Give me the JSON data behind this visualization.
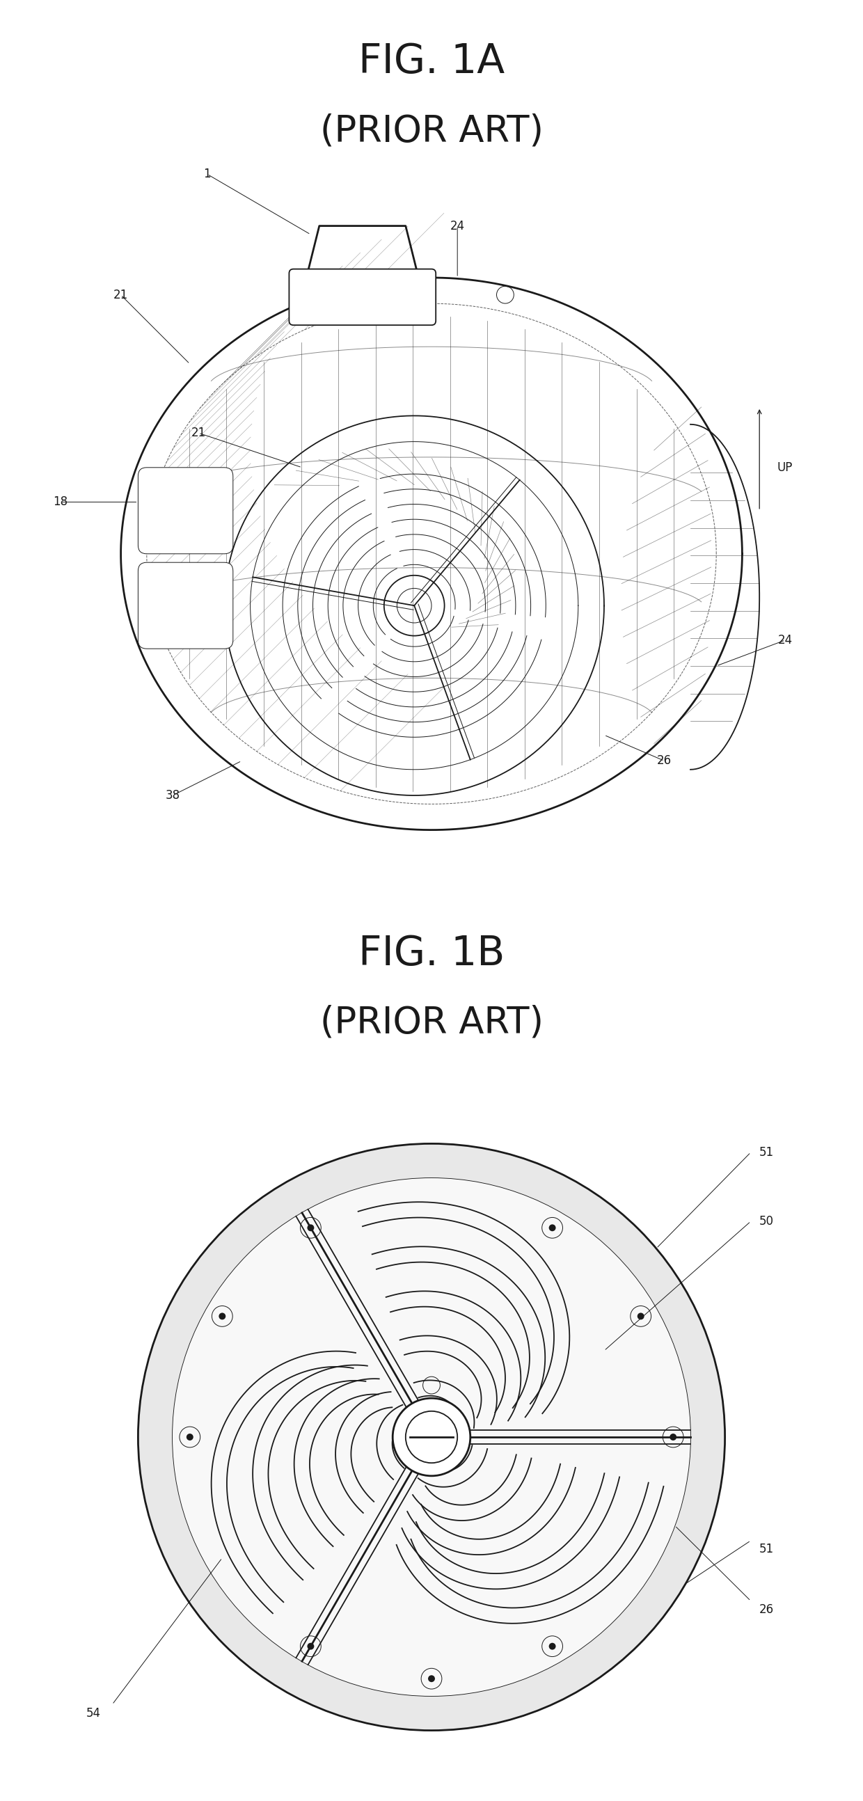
{
  "bg_color": "#ffffff",
  "line_color": "#1a1a1a",
  "fig_width": 12.4,
  "fig_height": 25.88,
  "fig1a_title": "FIG. 1A",
  "fig1a_subtitle": "(PRIOR ART)",
  "fig1b_title": "FIG. 1B",
  "fig1b_subtitle": "(PRIOR ART)",
  "title_fontsize": 42,
  "subtitle_fontsize": 38,
  "label_fontsize": 12,
  "lw_thick": 2.0,
  "lw_main": 1.3,
  "lw_thin": 0.7,
  "lw_hatch": 0.5
}
